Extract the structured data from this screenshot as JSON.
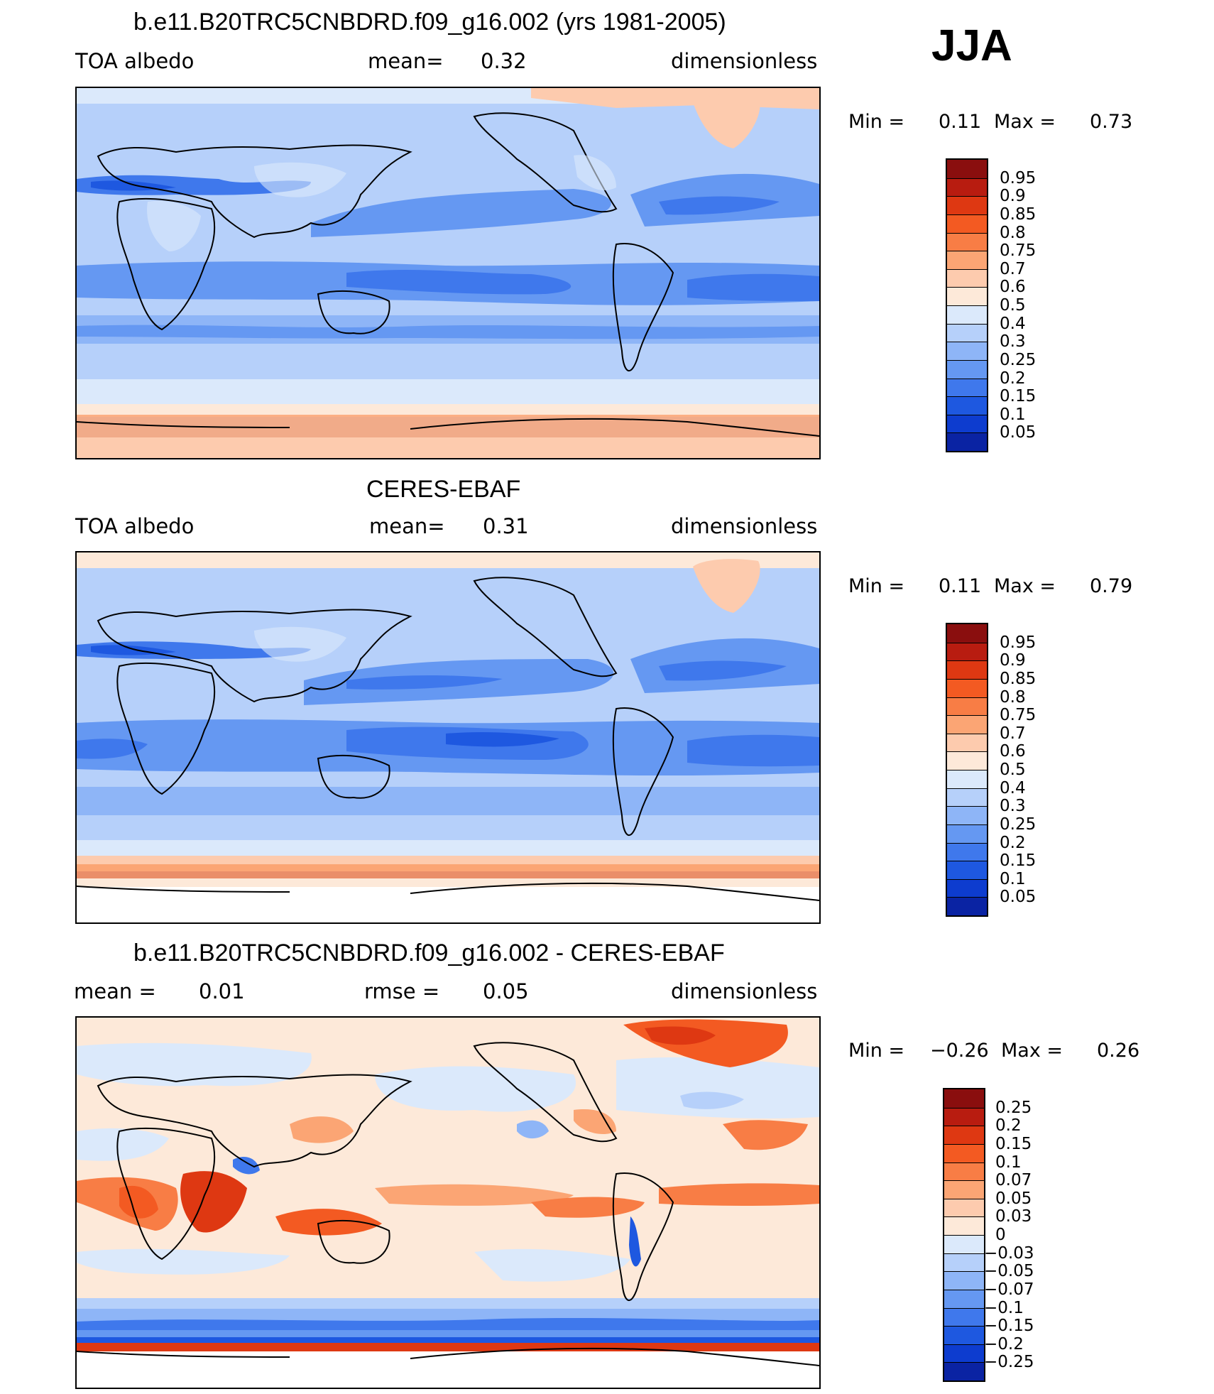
{
  "season": "JJA",
  "panels": [
    {
      "title": "b.e11.B20TRC5CNBDRD.f09_g16.002 (yrs 1981-2005)",
      "left": "TOA albedo",
      "center_label": "mean=",
      "center_value": "0.32",
      "right": "dimensionless",
      "min_label": "Min =",
      "min_value": "0.11",
      "max_label": "Max =",
      "max_value": "0.73",
      "colorbar": {
        "labels": [
          "0.95",
          "0.9",
          "0.85",
          "0.8",
          "0.75",
          "0.7",
          "0.6",
          "0.5",
          "0.4",
          "0.3",
          "0.25",
          "0.2",
          "0.15",
          "0.1",
          "0.05"
        ],
        "colors": [
          "#8a0e0e",
          "#b81c10",
          "#de3812",
          "#f35a22",
          "#f87d45",
          "#fba574",
          "#fdcbae",
          "#fde9d9",
          "#dbe9fb",
          "#b6d0fa",
          "#8eb5f7",
          "#6598f2",
          "#3f78ec",
          "#1e58e0",
          "#0d3ccf",
          "#0a23a3"
        ]
      }
    },
    {
      "title": "CERES-EBAF",
      "left": "TOA albedo",
      "center_label": "mean=",
      "center_value": "0.31",
      "right": "dimensionless",
      "min_label": "Min =",
      "min_value": "0.11",
      "max_label": "Max =",
      "max_value": "0.79",
      "colorbar": {
        "labels": [
          "0.95",
          "0.9",
          "0.85",
          "0.8",
          "0.75",
          "0.7",
          "0.6",
          "0.5",
          "0.4",
          "0.3",
          "0.25",
          "0.2",
          "0.15",
          "0.1",
          "0.05"
        ],
        "colors": [
          "#8a0e0e",
          "#b81c10",
          "#de3812",
          "#f35a22",
          "#f87d45",
          "#fba574",
          "#fdcbae",
          "#fde9d9",
          "#dbe9fb",
          "#b6d0fa",
          "#8eb5f7",
          "#6598f2",
          "#3f78ec",
          "#1e58e0",
          "#0d3ccf",
          "#0a23a3"
        ]
      }
    },
    {
      "title": "b.e11.B20TRC5CNBDRD.f09_g16.002 - CERES-EBAF",
      "left_label": "mean =",
      "left_value": "0.01",
      "center_label": "rmse =",
      "center_value": "0.05",
      "right": "dimensionless",
      "min_label": "Min =",
      "min_value": "−0.26",
      "max_label": "Max =",
      "max_value": "0.26",
      "colorbar": {
        "labels": [
          "0.25",
          "0.2",
          "0.15",
          "0.1",
          "0.07",
          "0.05",
          "0.03",
          "0",
          "−0.03",
          "−0.05",
          "−0.07",
          "−0.1",
          "−0.15",
          "−0.2",
          "−0.25"
        ],
        "colors": [
          "#8a0e0e",
          "#b81c10",
          "#de3812",
          "#f35a22",
          "#f87d45",
          "#fba574",
          "#fdcbae",
          "#fde9d9",
          "#dbe9fb",
          "#b6d0fa",
          "#8eb5f7",
          "#6598f2",
          "#3f78ec",
          "#1e58e0",
          "#0d3ccf",
          "#0a23a3"
        ]
      }
    }
  ]
}
